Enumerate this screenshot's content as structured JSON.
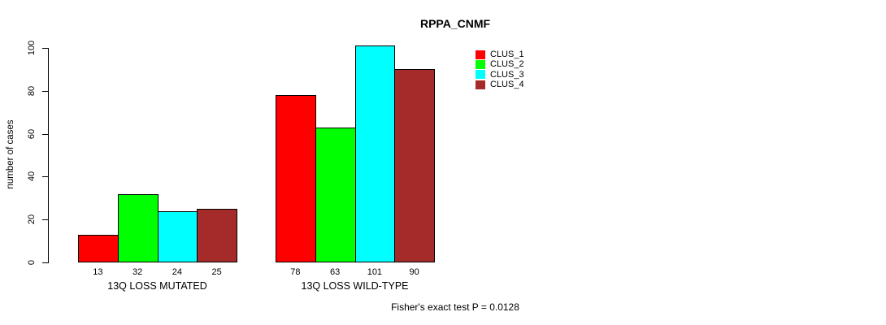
{
  "chart_data": {
    "type": "bar",
    "title": "RPPA_CNMF",
    "xlabel": "",
    "ylabel": "number of cases",
    "ylim": [
      0,
      100
    ],
    "yticks": [
      0,
      20,
      40,
      60,
      80,
      100
    ],
    "grid": false,
    "legend_position": "top-right",
    "bar_border_color": "#000000",
    "background_color": "#ffffff",
    "text_color": "#000000",
    "categories": [
      "13Q LOSS MUTATED",
      "13Q LOSS WILD-TYPE"
    ],
    "series": [
      {
        "name": "CLUS_1",
        "color": "#FF0000",
        "values": [
          13,
          78
        ]
      },
      {
        "name": "CLUS_2",
        "color": "#00FF00",
        "values": [
          32,
          63
        ]
      },
      {
        "name": "CLUS_3",
        "color": "#00FFFF",
        "values": [
          24,
          101
        ]
      },
      {
        "name": "CLUS_4",
        "color": "#A52A2A",
        "values": [
          25,
          90
        ]
      }
    ],
    "value_labels_shown": true,
    "annotation": "Fisher's exact test P = 0.0128"
  }
}
